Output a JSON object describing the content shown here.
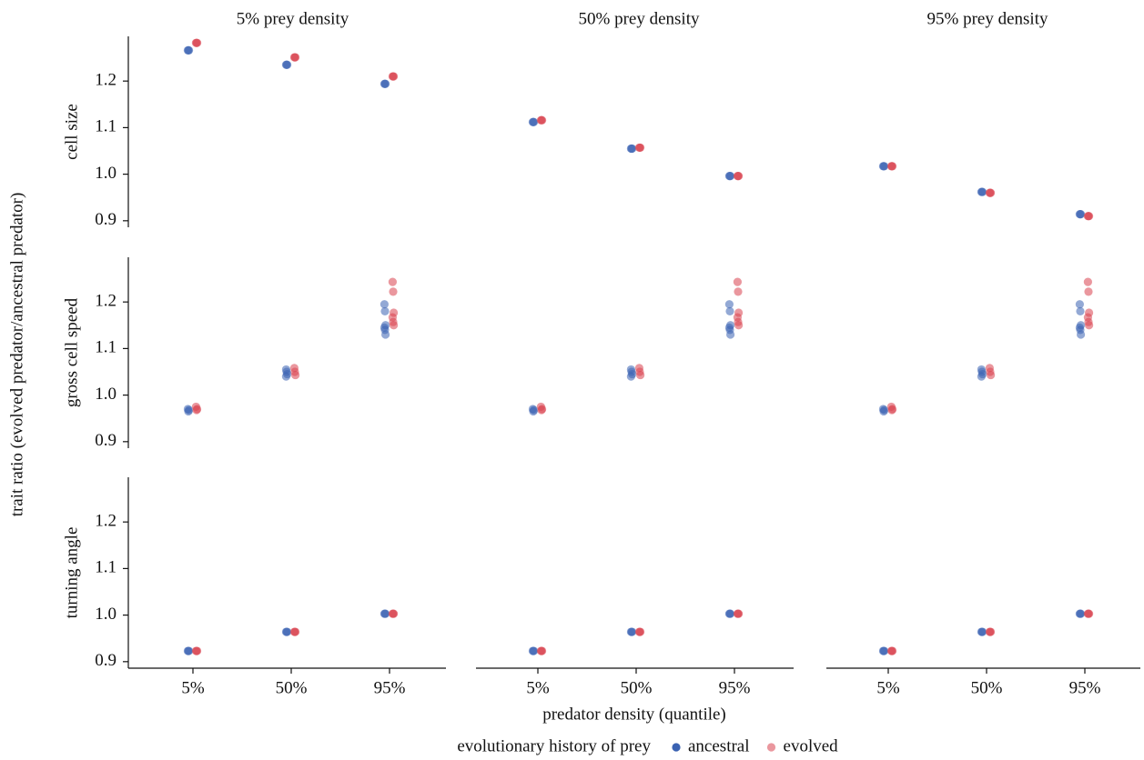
{
  "chart_data": {
    "type": "scatter",
    "y_label": "trait ratio (evolved predator/ancestral predator)",
    "x_label": "predator density (quantile)",
    "legend_title": "evolutionary history of prey",
    "columns": [
      "5% prey density",
      "50% prey density",
      "95% prey density"
    ],
    "rows": [
      "cell size",
      "gross cell speed",
      "turning angle"
    ],
    "categories": [
      "5%",
      "50%",
      "95%"
    ],
    "ylim": [
      0.886,
      1.296
    ],
    "yticks": [
      0.9,
      {
        "value": 1,
        "label": "1.0"
      },
      1.1,
      1.2
    ],
    "series": [
      {
        "name": "ancestral",
        "color": "#3a62b2",
        "values": [
          [
            [
              [
                1.266,
                1.266,
                1.266
              ],
              [
                1.235,
                1.235,
                1.235
              ],
              [
                1.194,
                1.194,
                1.194
              ]
            ],
            [
              [
                1.112,
                1.112,
                1.112
              ],
              [
                1.055,
                1.055,
                1.055
              ],
              [
                0.996,
                0.996,
                0.996
              ]
            ],
            [
              [
                1.017,
                1.017,
                1.017
              ],
              [
                0.962,
                0.962,
                0.962
              ],
              [
                0.914,
                0.914,
                0.914
              ]
            ]
          ],
          [
            [
              [
                0.97,
                0.965,
                0.968
              ],
              [
                1.055,
                1.05,
                1.045,
                1.04
              ],
              [
                1.195,
                1.18,
                1.15,
                1.145,
                1.14,
                1.13
              ]
            ],
            [
              [
                0.97,
                0.965,
                0.968
              ],
              [
                1.055,
                1.05,
                1.045,
                1.04
              ],
              [
                1.195,
                1.18,
                1.15,
                1.145,
                1.14,
                1.13
              ]
            ],
            [
              [
                0.97,
                0.965,
                0.968
              ],
              [
                1.055,
                1.05,
                1.045,
                1.04
              ],
              [
                1.195,
                1.18,
                1.15,
                1.145,
                1.14,
                1.13
              ]
            ]
          ],
          [
            [
              [
                0.923,
                0.923,
                0.923
              ],
              [
                0.964,
                0.964,
                0.964
              ],
              [
                1.003,
                1.003,
                1.003
              ]
            ],
            [
              [
                0.923,
                0.923,
                0.923
              ],
              [
                0.964,
                0.964,
                0.964
              ],
              [
                1.003,
                1.003,
                1.003
              ]
            ],
            [
              [
                0.923,
                0.923,
                0.923
              ],
              [
                0.964,
                0.964,
                0.964
              ],
              [
                1.003,
                1.003,
                1.003
              ]
            ]
          ]
        ]
      },
      {
        "name": "evolved",
        "color": "#d9424e",
        "values": [
          [
            [
              [
                1.282,
                1.282,
                1.282
              ],
              [
                1.251,
                1.251,
                1.251
              ],
              [
                1.21,
                1.21,
                1.21
              ]
            ],
            [
              [
                1.116,
                1.116,
                1.116
              ],
              [
                1.057,
                1.057,
                1.057
              ],
              [
                0.996,
                0.996,
                0.996
              ]
            ],
            [
              [
                1.017,
                1.017,
                1.017
              ],
              [
                0.96,
                0.96,
                0.96
              ],
              [
                0.91,
                0.91,
                0.91
              ]
            ]
          ],
          [
            [
              [
                0.975,
                0.968,
                0.97
              ],
              [
                1.058,
                1.05,
                1.043
              ],
              [
                1.243,
                1.222,
                1.177,
                1.167,
                1.157,
                1.15
              ]
            ],
            [
              [
                0.975,
                0.968,
                0.97
              ],
              [
                1.058,
                1.05,
                1.043
              ],
              [
                1.243,
                1.222,
                1.177,
                1.167,
                1.157,
                1.15
              ]
            ],
            [
              [
                0.975,
                0.968,
                0.97
              ],
              [
                1.058,
                1.05,
                1.043
              ],
              [
                1.243,
                1.222,
                1.177,
                1.167,
                1.157,
                1.15
              ]
            ]
          ],
          [
            [
              [
                0.923,
                0.923,
                0.923
              ],
              [
                0.964,
                0.964,
                0.964
              ],
              [
                1.003,
                1.003,
                1.003
              ]
            ],
            [
              [
                0.923,
                0.923,
                0.923
              ],
              [
                0.964,
                0.964,
                0.964
              ],
              [
                1.003,
                1.003,
                1.003
              ]
            ],
            [
              [
                0.923,
                0.923,
                0.923
              ],
              [
                0.964,
                0.964,
                0.964
              ],
              [
                1.003,
                1.003,
                1.003
              ]
            ]
          ]
        ]
      }
    ]
  }
}
